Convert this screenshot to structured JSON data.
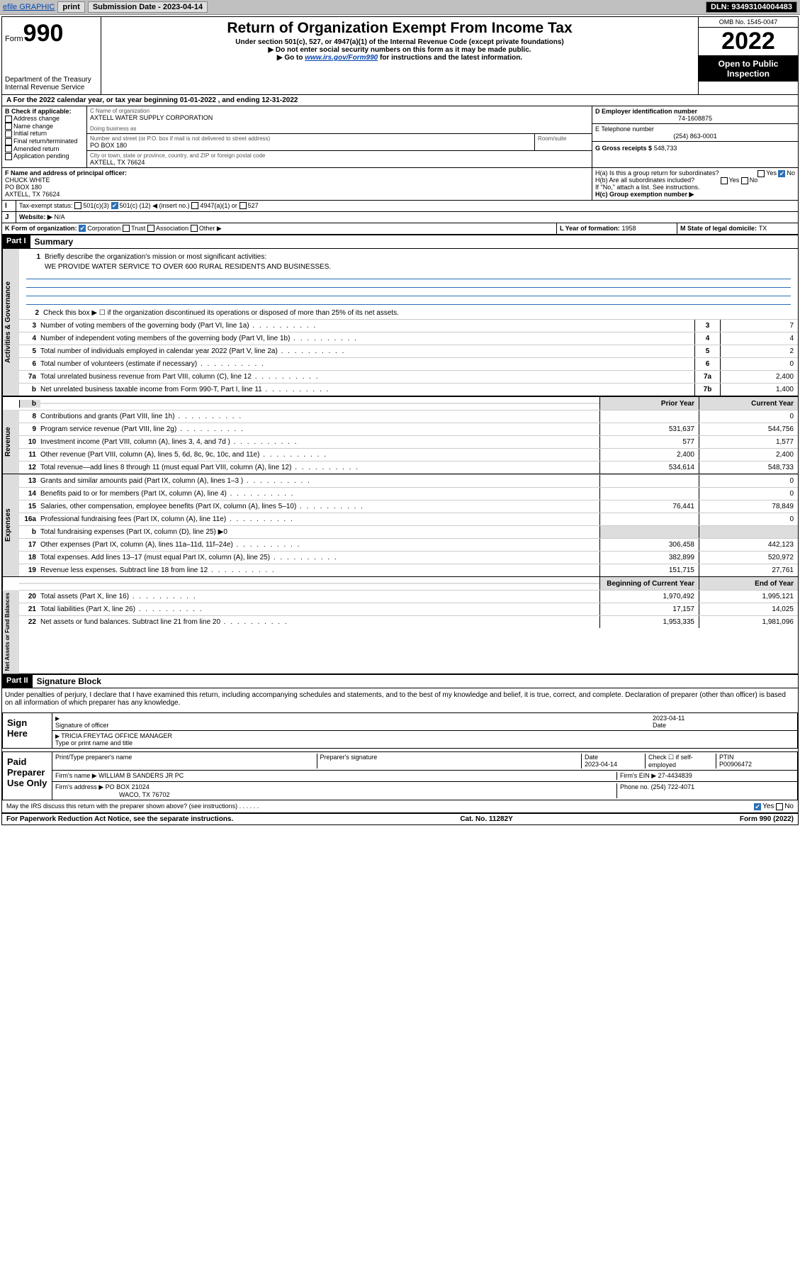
{
  "toolbar": {
    "efile": "efile GRAPHIC",
    "print": "print",
    "subdate_label": "Submission Date - 2023-04-14",
    "dln_label": "DLN: 93493104004483"
  },
  "header": {
    "form_word": "Form",
    "form_num": "990",
    "dept": "Department of the Treasury",
    "irs": "Internal Revenue Service",
    "title": "Return of Organization Exempt From Income Tax",
    "sub1": "Under section 501(c), 527, or 4947(a)(1) of the Internal Revenue Code (except private foundations)",
    "sub2": "▶ Do not enter social security numbers on this form as it may be made public.",
    "sub3_pre": "▶ Go to ",
    "sub3_link": "www.irs.gov/Form990",
    "sub3_post": " for instructions and the latest information.",
    "omb": "OMB No. 1545-0047",
    "year": "2022",
    "open": "Open to Public Inspection"
  },
  "taxyear": "For the 2022 calendar year, or tax year beginning 01-01-2022     , and ending 12-31-2022",
  "boxA": "A",
  "boxB": {
    "label": "B Check if applicable:",
    "items": [
      "Address change",
      "Name change",
      "Initial return",
      "Final return/terminated",
      "Amended return",
      "Application pending"
    ]
  },
  "boxC": {
    "label": "C Name of organization",
    "name": "AXTELL WATER SUPPLY CORPORATION",
    "dba_label": "Doing business as",
    "street_label": "Number and street (or P.O. box if mail is not delivered to street address)",
    "room_label": "Room/suite",
    "street": "PO BOX 180",
    "city_label": "City or town, state or province, country, and ZIP or foreign postal code",
    "city": "AXTELL, TX   76624"
  },
  "boxD": {
    "label": "D Employer identification number",
    "value": "74-1608875"
  },
  "boxE": {
    "label": "E Telephone number",
    "value": "(254) 863-0001"
  },
  "boxG": {
    "label": "G Gross receipts $",
    "value": "548,733"
  },
  "boxF": {
    "label": "F Name and address of principal officer:",
    "name": "CHUCK WHITE",
    "addr1": "PO BOX 180",
    "addr2": "AXTELL, TX  76624"
  },
  "boxH": {
    "a_label": "H(a)  Is this a group return for subordinates?",
    "a_yes": "Yes",
    "a_no": "No",
    "b_label": "H(b)  Are all subordinates included?",
    "b_note": "If \"No,\" attach a list. See instructions.",
    "c_label": "H(c)  Group exemption number ▶"
  },
  "boxI": {
    "label": "Tax-exempt status:",
    "opt1": "501(c)(3)",
    "opt2_pre": "501(c) (",
    "opt2_val": "12",
    "opt2_post": ") ◀ (insert no.)",
    "opt3": "4947(a)(1) or",
    "opt4": "527"
  },
  "boxJ": {
    "label": "Website: ▶",
    "value": "N/A"
  },
  "boxK": {
    "label": "K Form of organization:",
    "opts": [
      "Corporation",
      "Trust",
      "Association",
      "Other ▶"
    ]
  },
  "boxL": {
    "label": "L Year of formation:",
    "value": "1958"
  },
  "boxM": {
    "label": "M State of legal domicile:",
    "value": "TX"
  },
  "partI": {
    "hdr": "Part I",
    "title": "Summary",
    "line1_label": "Briefly describe the organization's mission or most significant activities:",
    "line1_text": "WE PROVIDE WATER SERVICE TO OVER 600 RURAL RESIDENTS AND BUSINESSES.",
    "line2": "Check this box ▶ ☐  if the organization discontinued its operations or disposed of more than 25% of its net assets.",
    "lines_gov": [
      {
        "n": "3",
        "d": "Number of voting members of the governing body (Part VI, line 1a)",
        "box": "3",
        "v": "7"
      },
      {
        "n": "4",
        "d": "Number of independent voting members of the governing body (Part VI, line 1b)",
        "box": "4",
        "v": "4"
      },
      {
        "n": "5",
        "d": "Total number of individuals employed in calendar year 2022 (Part V, line 2a)",
        "box": "5",
        "v": "2"
      },
      {
        "n": "6",
        "d": "Total number of volunteers (estimate if necessary)",
        "box": "6",
        "v": "0"
      },
      {
        "n": "7a",
        "d": "Total unrelated business revenue from Part VIII, column (C), line 12",
        "box": "7a",
        "v": "2,400"
      },
      {
        "n": "b",
        "d": "Net unrelated business taxable income from Form 990-T, Part I, line 11",
        "box": "7b",
        "v": "1,400"
      }
    ],
    "col_hdr_prior": "Prior Year",
    "col_hdr_curr": "Current Year",
    "rev_lines": [
      {
        "n": "8",
        "d": "Contributions and grants (Part VIII, line 1h)",
        "p": "",
        "c": "0"
      },
      {
        "n": "9",
        "d": "Program service revenue (Part VIII, line 2g)",
        "p": "531,637",
        "c": "544,756"
      },
      {
        "n": "10",
        "d": "Investment income (Part VIII, column (A), lines 3, 4, and 7d )",
        "p": "577",
        "c": "1,577"
      },
      {
        "n": "11",
        "d": "Other revenue (Part VIII, column (A), lines 5, 6d, 8c, 9c, 10c, and 11e)",
        "p": "2,400",
        "c": "2,400"
      },
      {
        "n": "12",
        "d": "Total revenue—add lines 8 through 11 (must equal Part VIII, column (A), line 12)",
        "p": "534,614",
        "c": "548,733"
      }
    ],
    "exp_lines": [
      {
        "n": "13",
        "d": "Grants and similar amounts paid (Part IX, column (A), lines 1–3 )",
        "p": "",
        "c": "0"
      },
      {
        "n": "14",
        "d": "Benefits paid to or for members (Part IX, column (A), line 4)",
        "p": "",
        "c": "0"
      },
      {
        "n": "15",
        "d": "Salaries, other compensation, employee benefits (Part IX, column (A), lines 5–10)",
        "p": "76,441",
        "c": "78,849"
      },
      {
        "n": "16a",
        "d": "Professional fundraising fees (Part IX, column (A), line 11e)",
        "p": "",
        "c": "0"
      },
      {
        "n": "b",
        "d": "Total fundraising expenses (Part IX, column (D), line 25) ▶0",
        "p": "—",
        "c": "—"
      },
      {
        "n": "17",
        "d": "Other expenses (Part IX, column (A), lines 11a–11d, 11f–24e)",
        "p": "306,458",
        "c": "442,123"
      },
      {
        "n": "18",
        "d": "Total expenses. Add lines 13–17 (must equal Part IX, column (A), line 25)",
        "p": "382,899",
        "c": "520,972"
      },
      {
        "n": "19",
        "d": "Revenue less expenses. Subtract line 18 from line 12",
        "p": "151,715",
        "c": "27,761"
      }
    ],
    "col_hdr_beg": "Beginning of Current Year",
    "col_hdr_end": "End of Year",
    "na_lines": [
      {
        "n": "20",
        "d": "Total assets (Part X, line 16)",
        "p": "1,970,492",
        "c": "1,995,121"
      },
      {
        "n": "21",
        "d": "Total liabilities (Part X, line 26)",
        "p": "17,157",
        "c": "14,025"
      },
      {
        "n": "22",
        "d": "Net assets or fund balances. Subtract line 21 from line 20",
        "p": "1,953,335",
        "c": "1,981,096"
      }
    ],
    "side_gov": "Activities & Governance",
    "side_rev": "Revenue",
    "side_exp": "Expenses",
    "side_na": "Net Assets or Fund Balances"
  },
  "partII": {
    "hdr": "Part II",
    "title": "Signature Block",
    "declaration": "Under penalties of perjury, I declare that I have examined this return, including accompanying schedules and statements, and to the best of my knowledge and belief, it is true, correct, and complete. Declaration of preparer (other than officer) is based on all information of which preparer has any knowledge.",
    "sign_here": "Sign Here",
    "sig_officer": "Signature of officer",
    "sig_date": "2023-04-11",
    "date_label": "Date",
    "officer_name": "TRICIA FREYTAG  OFFICE MANAGER",
    "name_title_label": "Type or print name and title",
    "paid_prep": "Paid Preparer Use Only",
    "prep_name_label": "Print/Type preparer's name",
    "prep_sig_label": "Preparer's signature",
    "prep_date": "2023-04-14",
    "prep_check": "Check ☐ if self-employed",
    "ptin_label": "PTIN",
    "ptin": "P00906472",
    "firm_name_label": "Firm's name    ▶",
    "firm_name": "WILLIAM B SANDERS JR PC",
    "firm_ein_label": "Firm's EIN ▶",
    "firm_ein": "27-4434839",
    "firm_addr_label": "Firm's address ▶",
    "firm_addr1": "PO BOX 21024",
    "firm_addr2": "WACO, TX  76702",
    "firm_phone_label": "Phone no.",
    "firm_phone": "(254) 722-4071",
    "may_irs": "May the IRS discuss this return with the preparer shown above? (see instructions)",
    "yes": "Yes",
    "no": "No"
  },
  "footer": {
    "left": "For Paperwork Reduction Act Notice, see the separate instructions.",
    "mid": "Cat. No. 11282Y",
    "right": "Form 990 (2022)"
  }
}
